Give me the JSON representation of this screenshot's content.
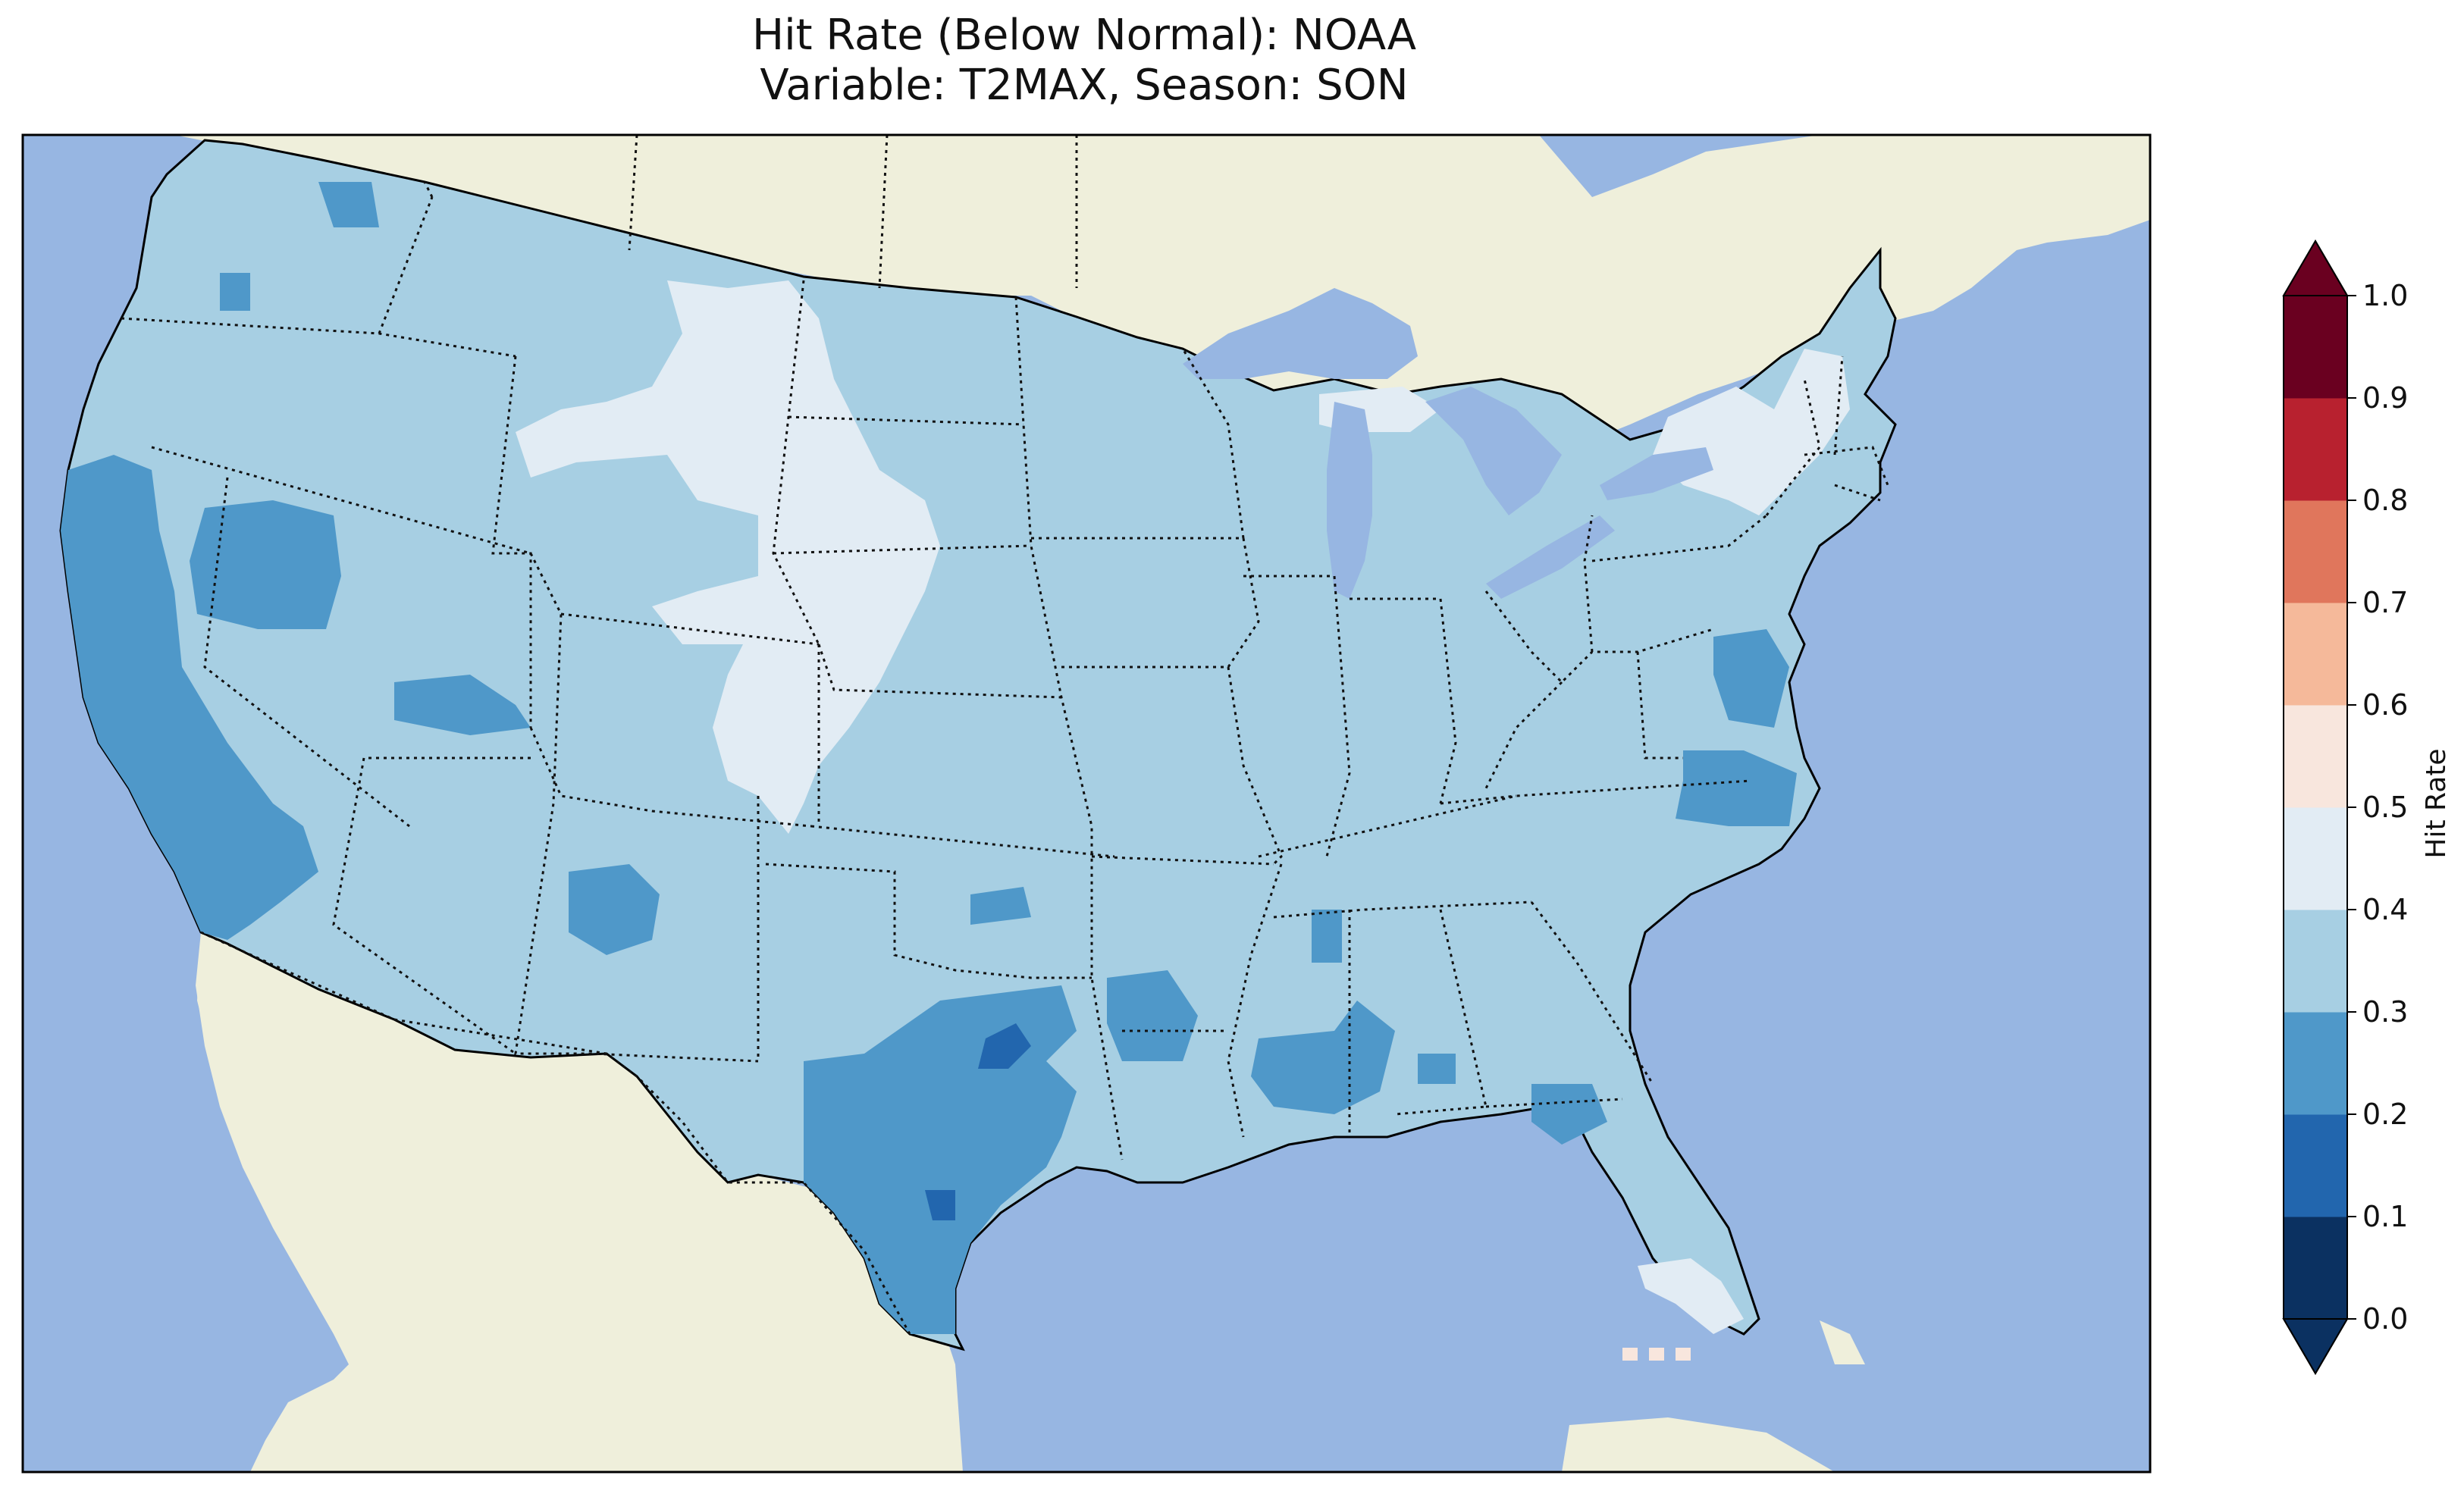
{
  "title": {
    "line1": "Hit Rate (Below Normal): NOAA",
    "line2": "Variable: T2MAX, Season: SON"
  },
  "colors": {
    "ocean": "#97b6e2",
    "land": "#efefdb",
    "lakes": "#97b6e2"
  },
  "colorbar": {
    "label": "Hit Rate",
    "ticks": [
      "0.0",
      "0.1",
      "0.2",
      "0.3",
      "0.4",
      "0.5",
      "0.6",
      "0.7",
      "0.8",
      "0.9",
      "1.0"
    ],
    "bin_colors": [
      "#053061",
      "#2166ac",
      "#4393c3",
      "#92c5de",
      "#d1e5f0",
      "#f7f7f7",
      "#fddbc7",
      "#f4a582",
      "#d6604d",
      "#b2182b",
      "#67001f"
    ],
    "display_colors": [
      "#0b3161",
      "#2266ae",
      "#4f98c9",
      "#a7cfe3",
      "#e2ecf4",
      "#f8e6dd",
      "#f5b99a",
      "#e0765c",
      "#b8212f",
      "#6a0020"
    ],
    "extend": "both"
  },
  "chart_data": {
    "type": "heatmap",
    "variable": "T2MAX",
    "season": "SON",
    "model": "NOAA",
    "value_range": [
      0.0,
      1.0
    ],
    "regions": [
      {
        "name": "background",
        "hit_rate_bin": "0.3-0.4"
      },
      {
        "name": "west-coast",
        "hit_rate_bin": "0.2-0.3"
      },
      {
        "name": "central-nevada",
        "hit_rate_bin": "0.2-0.3"
      },
      {
        "name": "idaho-north",
        "hit_rate_bin": "0.2-0.3"
      },
      {
        "name": "wyoming-colorado",
        "hit_rate_bin": "0.4-0.5"
      },
      {
        "name": "northern-plains-strip",
        "hit_rate_bin": "0.4-0.5"
      },
      {
        "name": "new-york-north",
        "hit_rate_bin": "0.4-0.5"
      },
      {
        "name": "upper-michigan",
        "hit_rate_bin": "0.4-0.5"
      },
      {
        "name": "texas-central",
        "hit_rate_bin": "0.2-0.3"
      },
      {
        "name": "texas-spots",
        "hit_rate_bin": "0.1-0.2"
      },
      {
        "name": "louisiana-mississippi",
        "hit_rate_bin": "0.2-0.3"
      },
      {
        "name": "new-mexico-west",
        "hit_rate_bin": "0.2-0.3"
      },
      {
        "name": "chesapeake",
        "hit_rate_bin": "0.2-0.3"
      },
      {
        "name": "florida-south",
        "hit_rate_bin": "0.4-0.5"
      },
      {
        "name": "florida-keys",
        "hit_rate_bin": "0.5-0.6"
      }
    ]
  }
}
